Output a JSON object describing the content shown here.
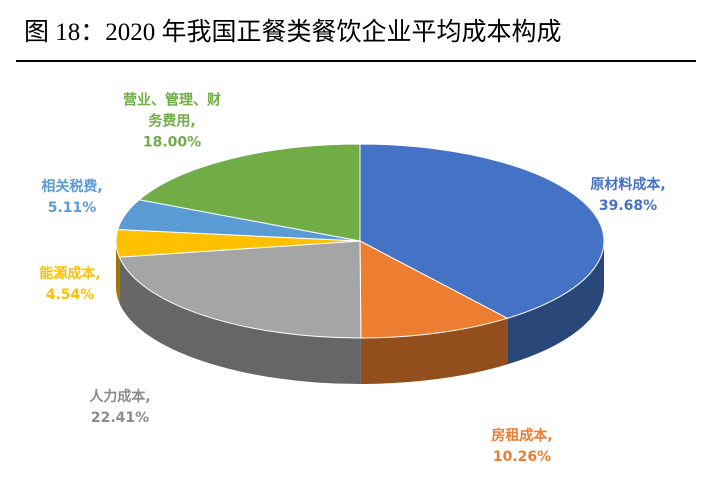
{
  "chart_data": {
    "type": "pie3d",
    "title": "图 18：2020 年我国正餐类餐饮企业平均成本构成",
    "categories": [
      "原材料成本,",
      "房租成本,",
      "人力成本,",
      "能源成本,",
      "相关税费,",
      "营业、管理、财务费用,"
    ],
    "values": [
      39.68,
      10.26,
      22.41,
      4.54,
      5.11,
      18.0
    ],
    "value_labels": [
      "39.68%",
      "10.26%",
      "22.41%",
      "4.54%",
      "5.11%",
      "18.00%"
    ],
    "colors": [
      "#4472c4",
      "#ed7d31",
      "#a5a5a5",
      "#ffc000",
      "#5b9bd5",
      "#70ad47"
    ]
  }
}
